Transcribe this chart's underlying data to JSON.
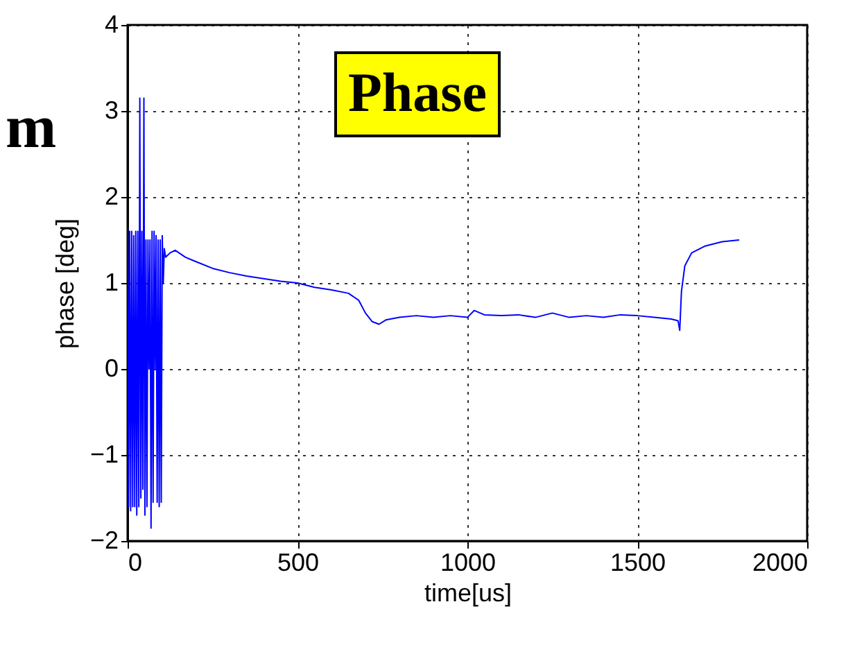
{
  "chart_data": {
    "type": "line",
    "xlabel": "time[us]",
    "ylabel": "phase [deg]",
    "annotations": [
      "Phase",
      "m"
    ],
    "xlim": [
      0,
      2000
    ],
    "xticks": [
      0,
      500,
      1000,
      1500,
      2000
    ],
    "ylim": [
      -2,
      4
    ],
    "yticks": [
      -2,
      -1,
      0,
      1,
      2,
      3,
      4
    ],
    "grid": true,
    "line_style": "solid",
    "series": [
      {
        "color": "#0000ff",
        "x": [
          0,
          3,
          6,
          9,
          12,
          15,
          18,
          21,
          24,
          27,
          30,
          33,
          36,
          39,
          42,
          45,
          48,
          51,
          54,
          57,
          60,
          63,
          66,
          69,
          72,
          75,
          78,
          81,
          84,
          87,
          90,
          93,
          96,
          99,
          102,
          105,
          108,
          112,
          125,
          140,
          170,
          200,
          250,
          300,
          350,
          400,
          450,
          500,
          550,
          600,
          650,
          680,
          700,
          720,
          740,
          760,
          800,
          850,
          900,
          950,
          1000,
          1020,
          1050,
          1100,
          1150,
          1200,
          1250,
          1300,
          1350,
          1400,
          1450,
          1500,
          1550,
          1600,
          1620,
          1625,
          1630,
          1640,
          1660,
          1700,
          1750,
          1800
        ],
        "values": [
          1.65,
          -1.6,
          1.6,
          -1.65,
          1.6,
          -1.6,
          1.55,
          -1.6,
          1.6,
          -1.7,
          1.6,
          -1.6,
          3.15,
          -1.5,
          1.6,
          -1.4,
          3.15,
          -1.7,
          1.5,
          -1.6,
          1.5,
          0.0,
          1.5,
          -1.85,
          1.6,
          -1.55,
          1.6,
          0.0,
          1.55,
          -1.55,
          1.5,
          -1.6,
          1.5,
          -1.55,
          1.55,
          1.0,
          1.4,
          1.3,
          1.35,
          1.38,
          1.3,
          1.25,
          1.17,
          1.12,
          1.08,
          1.05,
          1.02,
          1.0,
          0.95,
          0.92,
          0.88,
          0.8,
          0.65,
          0.55,
          0.52,
          0.57,
          0.6,
          0.62,
          0.6,
          0.62,
          0.6,
          0.68,
          0.63,
          0.62,
          0.63,
          0.6,
          0.65,
          0.6,
          0.62,
          0.6,
          0.63,
          0.62,
          0.6,
          0.58,
          0.56,
          0.45,
          0.9,
          1.2,
          1.35,
          1.43,
          1.48,
          1.5
        ]
      }
    ]
  }
}
